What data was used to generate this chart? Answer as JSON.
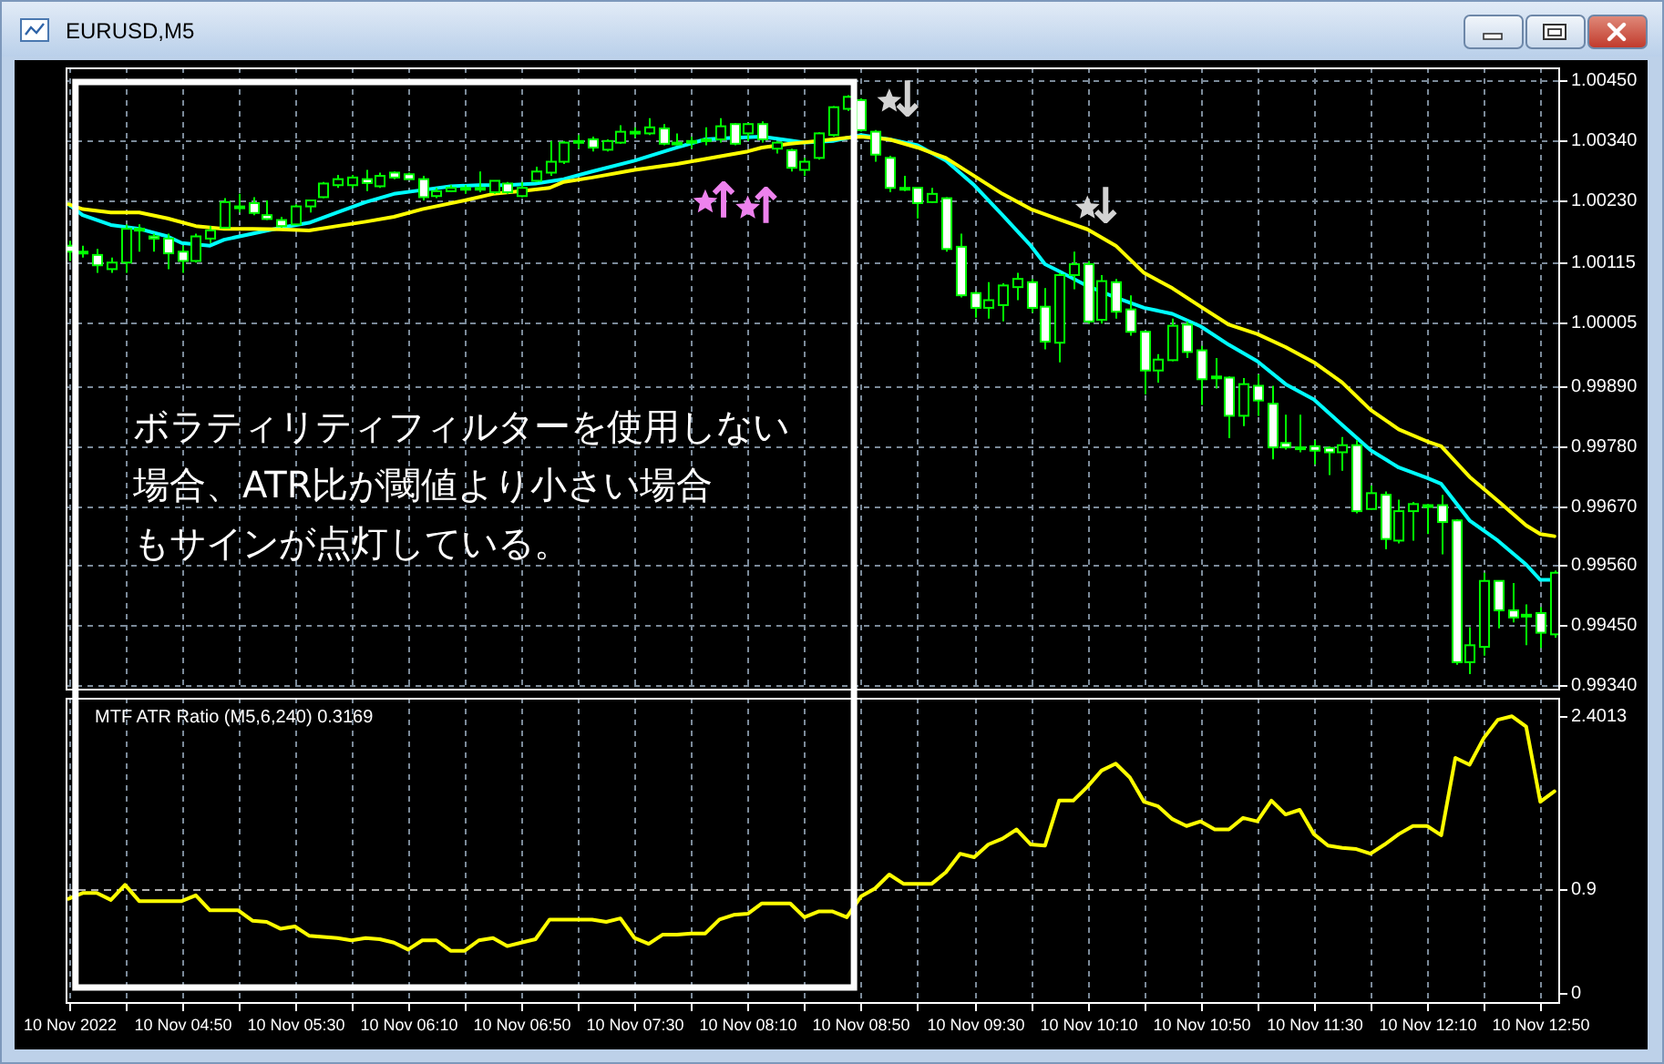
{
  "chart_data": [
    {
      "type": "candlestick",
      "title": "EURUSD,M5",
      "x": [
        "2022-11-10T04:10",
        "2022-11-10T04:15",
        "2022-11-10T04:20",
        "2022-11-10T04:25",
        "2022-11-10T04:30",
        "2022-11-10T04:35",
        "2022-11-10T04:40",
        "2022-11-10T04:45",
        "2022-11-10T04:50",
        "2022-11-10T04:55",
        "2022-11-10T05:00",
        "2022-11-10T05:05",
        "2022-11-10T05:10",
        "2022-11-10T05:15",
        "2022-11-10T05:20",
        "2022-11-10T05:25",
        "2022-11-10T05:30",
        "2022-11-10T05:35",
        "2022-11-10T05:40",
        "2022-11-10T05:45",
        "2022-11-10T05:50",
        "2022-11-10T05:55",
        "2022-11-10T06:00",
        "2022-11-10T06:05",
        "2022-11-10T06:10",
        "2022-11-10T06:15",
        "2022-11-10T06:20",
        "2022-11-10T06:25",
        "2022-11-10T06:30",
        "2022-11-10T06:35",
        "2022-11-10T06:40",
        "2022-11-10T06:45",
        "2022-11-10T06:50",
        "2022-11-10T06:55",
        "2022-11-10T07:00",
        "2022-11-10T07:05",
        "2022-11-10T07:10",
        "2022-11-10T07:15",
        "2022-11-10T07:20",
        "2022-11-10T07:25",
        "2022-11-10T07:30",
        "2022-11-10T07:35",
        "2022-11-10T07:40",
        "2022-11-10T07:45",
        "2022-11-10T07:50",
        "2022-11-10T07:55",
        "2022-11-10T08:00",
        "2022-11-10T08:05",
        "2022-11-10T08:10",
        "2022-11-10T08:15",
        "2022-11-10T08:20",
        "2022-11-10T08:25",
        "2022-11-10T08:30",
        "2022-11-10T08:35",
        "2022-11-10T08:40",
        "2022-11-10T08:45",
        "2022-11-10T08:50",
        "2022-11-10T08:55",
        "2022-11-10T09:00",
        "2022-11-10T09:05",
        "2022-11-10T09:10",
        "2022-11-10T09:15",
        "2022-11-10T09:20",
        "2022-11-10T09:25",
        "2022-11-10T09:30",
        "2022-11-10T09:35",
        "2022-11-10T09:40",
        "2022-11-10T09:45",
        "2022-11-10T09:50",
        "2022-11-10T09:55",
        "2022-11-10T10:00",
        "2022-11-10T10:05",
        "2022-11-10T10:10",
        "2022-11-10T10:15",
        "2022-11-10T10:20",
        "2022-11-10T10:25",
        "2022-11-10T10:30",
        "2022-11-10T10:35",
        "2022-11-10T10:40",
        "2022-11-10T10:45",
        "2022-11-10T10:50",
        "2022-11-10T10:55",
        "2022-11-10T11:00",
        "2022-11-10T11:05",
        "2022-11-10T11:10",
        "2022-11-10T11:15",
        "2022-11-10T11:20",
        "2022-11-10T11:25",
        "2022-11-10T11:30",
        "2022-11-10T11:35",
        "2022-11-10T11:40",
        "2022-11-10T11:45",
        "2022-11-10T11:50",
        "2022-11-10T11:55",
        "2022-11-10T12:00",
        "2022-11-10T12:05",
        "2022-11-10T12:10",
        "2022-11-10T12:15",
        "2022-11-10T12:20",
        "2022-11-10T12:25",
        "2022-11-10T12:30",
        "2022-11-10T12:35",
        "2022-11-10T12:40",
        "2022-11-10T12:45",
        "2022-11-10T12:50",
        "2022-11-10T12:55"
      ],
      "ohlc": [
        [
          1.00147,
          1.00156,
          1.00119,
          1.00136
        ],
        [
          1.00136,
          1.00147,
          1.00125,
          1.00133
        ],
        [
          1.0013,
          1.00141,
          1.00097,
          1.00111
        ],
        [
          1.00104,
          1.00125,
          1.00097,
          1.00116
        ],
        [
          1.00116,
          1.00186,
          1.00097,
          1.00178
        ],
        [
          1.00178,
          1.00186,
          1.00136,
          1.00175
        ],
        [
          1.00164,
          1.00169,
          1.00136,
          1.0016
        ],
        [
          1.0016,
          1.00169,
          1.00104,
          1.00133
        ],
        [
          1.00136,
          1.00147,
          1.00097,
          1.00119
        ],
        [
          1.00119,
          1.00169,
          1.00116,
          1.00164
        ],
        [
          1.0016,
          1.00183,
          1.00152,
          1.00175
        ],
        [
          1.0018,
          1.00234,
          1.0018,
          1.00227
        ],
        [
          1.00219,
          1.00242,
          1.00208,
          1.00217
        ],
        [
          1.00225,
          1.00236,
          1.00203,
          1.00207
        ],
        [
          1.00203,
          1.0023,
          1.00194,
          1.00196
        ],
        [
          1.00194,
          1.002,
          1.0018,
          1.00183
        ],
        [
          1.00186,
          1.00223,
          1.00186,
          1.00219
        ],
        [
          1.00219,
          1.0023,
          1.00208,
          1.0023
        ],
        [
          1.00236,
          1.00264,
          1.00234,
          1.00261
        ],
        [
          1.00258,
          1.00277,
          1.00253,
          1.00269
        ],
        [
          1.00258,
          1.00277,
          1.00253,
          1.00272
        ],
        [
          1.00269,
          1.00286,
          1.00247,
          1.00262
        ],
        [
          1.00256,
          1.00281,
          1.00253,
          1.00275
        ],
        [
          1.00281,
          1.00283,
          1.00269,
          1.00272
        ],
        [
          1.00278,
          1.00281,
          1.00269,
          1.00269
        ],
        [
          1.00269,
          1.00275,
          1.0023,
          1.00236
        ],
        [
          1.00238,
          1.00253,
          1.00234,
          1.00247
        ],
        [
          1.00247,
          1.00258,
          1.00245,
          1.00253
        ],
        [
          1.00253,
          1.00258,
          1.00242,
          1.0025
        ],
        [
          1.0025,
          1.00283,
          1.00245,
          1.00253
        ],
        [
          1.00245,
          1.00266,
          1.00242,
          1.00266
        ],
        [
          1.00261,
          1.00264,
          1.00242,
          1.00245
        ],
        [
          1.00238,
          1.00264,
          1.00236,
          1.00253
        ],
        [
          1.00266,
          1.00292,
          1.00264,
          1.00283
        ],
        [
          1.00281,
          1.00339,
          1.00275,
          1.00301
        ],
        [
          1.00301,
          1.00339,
          1.00297,
          1.00336
        ],
        [
          1.00336,
          1.0035,
          1.00325,
          1.00339
        ],
        [
          1.00342,
          1.00347,
          1.0032,
          1.00327
        ],
        [
          1.00323,
          1.00342,
          1.0032,
          1.00339
        ],
        [
          1.00336,
          1.00368,
          1.00334,
          1.00356
        ],
        [
          1.00356,
          1.00364,
          1.00345,
          1.00355
        ],
        [
          1.00353,
          1.00381,
          1.0035,
          1.00364
        ],
        [
          1.00362,
          1.0037,
          1.00331,
          1.00334
        ],
        [
          1.00334,
          1.00353,
          1.00331,
          1.00336
        ],
        [
          1.00336,
          1.00347,
          1.00325,
          1.00339
        ],
        [
          1.00339,
          1.00364,
          1.00331,
          1.00342
        ],
        [
          1.00342,
          1.00381,
          1.00336,
          1.00366
        ],
        [
          1.0037,
          1.00372,
          1.00331,
          1.00334
        ],
        [
          1.00353,
          1.00372,
          1.00339,
          1.0037
        ],
        [
          1.0037,
          1.00375,
          1.00336,
          1.00342
        ],
        [
          1.00325,
          1.00339,
          1.00316,
          1.00336
        ],
        [
          1.00322,
          1.00325,
          1.00283,
          1.0029
        ],
        [
          1.00286,
          1.00308,
          1.00275,
          1.00301
        ],
        [
          1.00308,
          1.00355,
          1.00305,
          1.00353
        ],
        [
          1.0035,
          1.00403,
          1.00347,
          1.00401
        ],
        [
          1.00398,
          1.00423,
          1.00394,
          1.0042
        ],
        [
          1.00414,
          1.00417,
          1.00356,
          1.00359
        ],
        [
          1.00356,
          1.00359,
          1.00301,
          1.00314
        ],
        [
          1.00308,
          1.00312,
          1.00245,
          1.00253
        ],
        [
          1.00253,
          1.00275,
          1.00247,
          1.0025
        ],
        [
          1.00253,
          1.00253,
          1.00197,
          1.00225
        ],
        [
          1.00227,
          1.00253,
          1.00225,
          1.00242
        ],
        [
          1.00234,
          1.00236,
          1.00136,
          1.00141
        ],
        [
          1.00145,
          1.00169,
          1.00052,
          1.00056
        ],
        [
          1.0006,
          1.00063,
          1.00015,
          1.00033
        ],
        [
          1.00033,
          1.0008,
          1.00013,
          1.00047
        ],
        [
          1.00038,
          1.00078,
          1.00008,
          1.00074
        ],
        [
          1.00071,
          1.00097,
          1.00047,
          1.00086
        ],
        [
          1.0008,
          1.00086,
          1.00024,
          1.00033
        ],
        [
          1.00035,
          1.00069,
          0.99957,
          0.99971
        ],
        [
          0.99969,
          1.00097,
          0.99933,
          1.00093
        ],
        [
          1.00093,
          1.00136,
          1.00067,
          1.00113
        ],
        [
          1.00113,
          1.00119,
          1.00004,
          1.00008
        ],
        [
          1.00011,
          1.00093,
          1.00004,
          1.00082
        ],
        [
          1.0008,
          1.00086,
          1.00013,
          1.00026
        ],
        [
          1.0003,
          1.00056,
          0.99982,
          0.99989
        ],
        [
          0.99989,
          0.99991,
          0.99874,
          0.99918
        ],
        [
          0.99918,
          0.99948,
          0.99896,
          0.99938
        ],
        [
          0.99937,
          1.00013,
          0.99935,
          1.0
        ],
        [
          1.00002,
          1.00008,
          0.99941,
          0.99952
        ],
        [
          0.99955,
          0.99963,
          0.99855,
          0.99902
        ],
        [
          0.99904,
          0.99941,
          0.99885,
          0.99907
        ],
        [
          0.99905,
          0.99907,
          0.99794,
          0.99835
        ],
        [
          0.99835,
          0.99904,
          0.99816,
          0.99893
        ],
        [
          0.9989,
          0.99911,
          0.99835,
          0.99863
        ],
        [
          0.99857,
          0.9989,
          0.99755,
          0.99777
        ],
        [
          0.99785,
          0.99837,
          0.99773,
          0.99777
        ],
        [
          0.99777,
          0.99837,
          0.99768,
          0.99776
        ],
        [
          0.99779,
          0.9979,
          0.99746,
          0.99771
        ],
        [
          0.99776,
          0.99779,
          0.99726,
          0.99768
        ],
        [
          0.99768,
          0.99796,
          0.99734,
          0.99781
        ],
        [
          0.99781,
          0.9979,
          0.99656,
          0.9966
        ],
        [
          0.99664,
          0.99707,
          0.99662,
          0.99693
        ],
        [
          0.9969,
          0.99696,
          0.9959,
          0.99609
        ],
        [
          0.99606,
          0.99681,
          0.99601,
          0.9966
        ],
        [
          0.9966,
          0.99677,
          0.99606,
          0.99673
        ],
        [
          0.9967,
          0.99673,
          0.99618,
          0.99671
        ],
        [
          0.99671,
          0.9969,
          0.99581,
          0.9964
        ],
        [
          0.99643,
          0.99645,
          0.99378,
          0.99383
        ],
        [
          0.99383,
          0.99447,
          0.99361,
          0.99414
        ],
        [
          0.99411,
          0.99547,
          0.99395,
          0.99532
        ],
        [
          0.99532,
          0.99532,
          0.99445,
          0.99478
        ],
        [
          0.99478,
          0.99528,
          0.99456,
          0.99465
        ],
        [
          0.9947,
          0.99489,
          0.99414,
          0.9947
        ],
        [
          0.99473,
          0.99484,
          0.99409,
          0.99437
        ],
        [
          0.99434,
          0.99551,
          0.99428,
          0.99547
        ]
      ],
      "color": "#00ff00",
      "series": [
        {
          "type": "line",
          "color": "#00ffff",
          "x": [
            "2022-11-10T04:10",
            "2022-11-10T04:15",
            "2022-11-10T04:25",
            "2022-11-10T04:35",
            "2022-11-10T04:45",
            "2022-11-10T04:50",
            "2022-11-10T05:00",
            "2022-11-10T05:05",
            "2022-11-10T05:15",
            "2022-11-10T05:25",
            "2022-11-10T05:35",
            "2022-11-10T05:45",
            "2022-11-10T05:55",
            "2022-11-10T06:05",
            "2022-11-10T06:15",
            "2022-11-10T06:25",
            "2022-11-10T06:35",
            "2022-11-10T06:45",
            "2022-11-10T06:55",
            "2022-11-10T07:05",
            "2022-11-10T07:15",
            "2022-11-10T07:30",
            "2022-11-10T07:45",
            "2022-11-10T07:55",
            "2022-11-10T08:05",
            "2022-11-10T08:15",
            "2022-11-10T08:25",
            "2022-11-10T08:30",
            "2022-11-10T08:40",
            "2022-11-10T08:50",
            "2022-11-10T09:00",
            "2022-11-10T09:10",
            "2022-11-10T09:20",
            "2022-11-10T09:30",
            "2022-11-10T09:40",
            "2022-11-10T09:50",
            "2022-11-10T09:55",
            "2022-11-10T10:00",
            "2022-11-10T10:10",
            "2022-11-10T10:20",
            "2022-11-10T10:30",
            "2022-11-10T10:40",
            "2022-11-10T10:50",
            "2022-11-10T11:00",
            "2022-11-10T11:10",
            "2022-11-10T11:20",
            "2022-11-10T11:30",
            "2022-11-10T11:40",
            "2022-11-10T11:50",
            "2022-11-10T12:00",
            "2022-11-10T12:10",
            "2022-11-10T12:15",
            "2022-11-10T12:25",
            "2022-11-10T12:35",
            "2022-11-10T12:45",
            "2022-11-10T12:50",
            "2022-11-10T12:55"
          ],
          "values": [
            1.00223,
            1.00203,
            1.00185,
            1.00178,
            1.00164,
            1.00152,
            1.00147,
            1.00158,
            1.00169,
            1.0018,
            1.00189,
            1.00208,
            1.00227,
            1.00242,
            1.00249,
            1.00256,
            1.00258,
            1.00258,
            1.00261,
            1.00269,
            1.00283,
            1.00303,
            1.00327,
            1.00342,
            1.00345,
            1.00347,
            1.0034,
            1.00336,
            1.00339,
            1.0035,
            1.00342,
            1.00331,
            1.00303,
            1.00258,
            1.00203,
            1.00147,
            1.00113,
            1.001,
            1.00073,
            1.00052,
            1.00033,
            1.00022,
            0.99999,
            0.99965,
            0.99935,
            0.99893,
            0.99865,
            0.99818,
            0.99772,
            0.9974,
            0.99721,
            0.9971,
            0.99643,
            0.99606,
            0.99562,
            0.99534,
            0.99534
          ]
        },
        {
          "type": "line",
          "color": "#ffff00",
          "x": [
            "2022-11-10T04:10",
            "2022-11-10T04:15",
            "2022-11-10T04:25",
            "2022-11-10T04:35",
            "2022-11-10T04:45",
            "2022-11-10T04:55",
            "2022-11-10T05:05",
            "2022-11-10T05:15",
            "2022-11-10T05:25",
            "2022-11-10T05:35",
            "2022-11-10T05:45",
            "2022-11-10T05:55",
            "2022-11-10T06:05",
            "2022-11-10T06:15",
            "2022-11-10T06:30",
            "2022-11-10T06:40",
            "2022-11-10T06:50",
            "2022-11-10T07:00",
            "2022-11-10T07:05",
            "2022-11-10T07:15",
            "2022-11-10T07:30",
            "2022-11-10T07:45",
            "2022-11-10T07:55",
            "2022-11-10T08:10",
            "2022-11-10T08:15",
            "2022-11-10T08:25",
            "2022-11-10T08:35",
            "2022-11-10T08:45",
            "2022-11-10T08:50",
            "2022-11-10T09:00",
            "2022-11-10T09:10",
            "2022-11-10T09:20",
            "2022-11-10T09:30",
            "2022-11-10T09:40",
            "2022-11-10T09:50",
            "2022-11-10T10:00",
            "2022-11-10T10:10",
            "2022-11-10T10:20",
            "2022-11-10T10:30",
            "2022-11-10T10:40",
            "2022-11-10T10:50",
            "2022-11-10T11:00",
            "2022-11-10T11:10",
            "2022-11-10T11:20",
            "2022-11-10T11:30",
            "2022-11-10T11:40",
            "2022-11-10T11:50",
            "2022-11-10T12:00",
            "2022-11-10T12:10",
            "2022-11-10T12:15",
            "2022-11-10T12:25",
            "2022-11-10T12:35",
            "2022-11-10T12:45",
            "2022-11-10T12:50",
            "2022-11-10T12:55"
          ],
          "values": [
            1.00223,
            1.00214,
            1.00208,
            1.00208,
            1.00197,
            1.00183,
            1.00178,
            1.00178,
            1.00177,
            1.00175,
            1.00183,
            1.00191,
            1.002,
            1.00214,
            1.0023,
            1.00242,
            1.00247,
            1.00253,
            1.00264,
            1.00272,
            1.00286,
            1.00297,
            1.00306,
            1.0032,
            1.00327,
            1.00334,
            1.00339,
            1.00345,
            1.00347,
            1.00342,
            1.00327,
            1.00308,
            1.00275,
            1.00242,
            1.00214,
            1.00195,
            1.00177,
            1.00147,
            1.00097,
            1.00069,
            1.00035,
            1.00002,
            0.99985,
            0.99961,
            0.99933,
            0.99896,
            0.99846,
            0.9981,
            0.99788,
            0.99779,
            0.99723,
            0.99679,
            0.99634,
            0.99618,
            0.99614
          ]
        },
        {
          "type": "scatter",
          "marker": "star",
          "color": "#ee82ee",
          "x": [
            "2022-11-10T07:55",
            "2022-11-10T08:10"
          ],
          "values": [
            1.00227,
            1.00216
          ]
        },
        {
          "type": "scatter",
          "marker": "star",
          "color": "#d3d3d3",
          "x": [
            "2022-11-10T09:00",
            "2022-11-10T10:10"
          ],
          "values": [
            1.00412,
            1.00216
          ]
        }
      ],
      "annotations": [
        "ボラティリティフィルターを使用しない場合、ATR比が閾値より小さい場合もサインが点灯している。",
        {
          "text": "↑",
          "x": "2022-11-10T07:55",
          "y": 1.00227
        },
        {
          "text": "↑",
          "x": "2022-11-10T08:10",
          "y": 1.00216
        },
        {
          "text": "↓",
          "x": "2022-11-10T09:00",
          "y": 1.00412
        },
        {
          "text": "↓",
          "x": "2022-11-10T10:10",
          "y": 1.00216
        }
      ],
      "xlim": [
        "2022-11-10T04:09",
        "2022-11-10T12:57"
      ],
      "xticks": [
        "2022-11-10T04:10",
        "2022-11-10T04:30",
        "2022-11-10T04:50",
        "2022-11-10T05:10",
        "2022-11-10T05:30",
        "2022-11-10T05:50",
        "2022-11-10T06:10",
        "2022-11-10T06:30",
        "2022-11-10T06:50",
        "2022-11-10T07:10",
        "2022-11-10T07:30",
        "2022-11-10T07:50",
        "2022-11-10T08:10",
        "2022-11-10T08:30",
        "2022-11-10T08:50",
        "2022-11-10T09:10",
        "2022-11-10T09:30",
        "2022-11-10T09:50",
        "2022-11-10T10:10",
        "2022-11-10T10:30",
        "2022-11-10T10:50",
        "2022-11-10T11:10",
        "2022-11-10T11:30",
        "2022-11-10T11:50",
        "2022-11-10T12:10",
        "2022-11-10T12:30",
        "2022-11-10T12:50"
      ],
      "ylim": [
        0.99331,
        1.00474
      ],
      "yticks": [
        {
          "value": 1.0045,
          "label": "1.00450"
        },
        {
          "value": 1.0034,
          "label": "1.00340"
        },
        {
          "value": 1.0023,
          "label": "1.00230"
        },
        1.00115,
        1.00005,
        {
          "value": 0.9989,
          "label": "0.99890"
        },
        {
          "value": 0.9978,
          "label": "0.99780"
        },
        {
          "value": 0.9967,
          "label": "0.99670"
        },
        {
          "value": 0.9956,
          "label": "0.99560"
        },
        {
          "value": 0.9945,
          "label": "0.99450"
        },
        {
          "value": 0.9934,
          "label": "0.99340"
        }
      ],
      "grid": true,
      "tick_labels": "y"
    },
    {
      "type": "line",
      "title": "MTF ATR Ratio (M5,6,240) 0.3169",
      "x": [
        "2022-11-10T04:10",
        "2022-11-10T04:15",
        "2022-11-10T04:20",
        "2022-11-10T04:25",
        "2022-11-10T04:30",
        "2022-11-10T04:35",
        "2022-11-10T04:40",
        "2022-11-10T04:45",
        "2022-11-10T04:50",
        "2022-11-10T04:55",
        "2022-11-10T05:00",
        "2022-11-10T05:05",
        "2022-11-10T05:10",
        "2022-11-10T05:15",
        "2022-11-10T05:20",
        "2022-11-10T05:25",
        "2022-11-10T05:30",
        "2022-11-10T05:35",
        "2022-11-10T05:40",
        "2022-11-10T05:45",
        "2022-11-10T05:50",
        "2022-11-10T05:55",
        "2022-11-10T06:00",
        "2022-11-10T06:05",
        "2022-11-10T06:10",
        "2022-11-10T06:15",
        "2022-11-10T06:20",
        "2022-11-10T06:25",
        "2022-11-10T06:30",
        "2022-11-10T06:35",
        "2022-11-10T06:40",
        "2022-11-10T06:45",
        "2022-11-10T06:50",
        "2022-11-10T06:55",
        "2022-11-10T07:00",
        "2022-11-10T07:05",
        "2022-11-10T07:10",
        "2022-11-10T07:15",
        "2022-11-10T07:20",
        "2022-11-10T07:25",
        "2022-11-10T07:30",
        "2022-11-10T07:35",
        "2022-11-10T07:40",
        "2022-11-10T07:45",
        "2022-11-10T07:50",
        "2022-11-10T07:55",
        "2022-11-10T08:00",
        "2022-11-10T08:05",
        "2022-11-10T08:10",
        "2022-11-10T08:15",
        "2022-11-10T08:20",
        "2022-11-10T08:25",
        "2022-11-10T08:30",
        "2022-11-10T08:35",
        "2022-11-10T08:40",
        "2022-11-10T08:45",
        "2022-11-10T08:50",
        "2022-11-10T08:55",
        "2022-11-10T09:00",
        "2022-11-10T09:05",
        "2022-11-10T09:10",
        "2022-11-10T09:15",
        "2022-11-10T09:20",
        "2022-11-10T09:25",
        "2022-11-10T09:30",
        "2022-11-10T09:35",
        "2022-11-10T09:40",
        "2022-11-10T09:45",
        "2022-11-10T09:50",
        "2022-11-10T09:55",
        "2022-11-10T10:00",
        "2022-11-10T10:05",
        "2022-11-10T10:10",
        "2022-11-10T10:15",
        "2022-11-10T10:20",
        "2022-11-10T10:25",
        "2022-11-10T10:30",
        "2022-11-10T10:35",
        "2022-11-10T10:40",
        "2022-11-10T10:45",
        "2022-11-10T10:50",
        "2022-11-10T10:55",
        "2022-11-10T11:00",
        "2022-11-10T11:05",
        "2022-11-10T11:10",
        "2022-11-10T11:15",
        "2022-11-10T11:20",
        "2022-11-10T11:25",
        "2022-11-10T11:30",
        "2022-11-10T11:35",
        "2022-11-10T11:40",
        "2022-11-10T11:45",
        "2022-11-10T11:50",
        "2022-11-10T11:55",
        "2022-11-10T12:00",
        "2022-11-10T12:05",
        "2022-11-10T12:10",
        "2022-11-10T12:15",
        "2022-11-10T12:20",
        "2022-11-10T12:25",
        "2022-11-10T12:30",
        "2022-11-10T12:35",
        "2022-11-10T12:40",
        "2022-11-10T12:45",
        "2022-11-10T12:50",
        "2022-11-10T12:55"
      ],
      "series": [
        {
          "color": "#ffff00",
          "values": [
            0.82,
            0.87,
            0.87,
            0.81,
            0.94,
            0.8,
            0.8,
            0.8,
            0.8,
            0.85,
            0.72,
            0.72,
            0.72,
            0.63,
            0.62,
            0.56,
            0.58,
            0.5,
            0.49,
            0.48,
            0.46,
            0.48,
            0.47,
            0.44,
            0.38,
            0.46,
            0.46,
            0.37,
            0.37,
            0.46,
            0.48,
            0.41,
            0.44,
            0.47,
            0.64,
            0.64,
            0.64,
            0.64,
            0.62,
            0.65,
            0.48,
            0.43,
            0.51,
            0.51,
            0.52,
            0.52,
            0.64,
            0.68,
            0.69,
            0.78,
            0.78,
            0.78,
            0.66,
            0.71,
            0.71,
            0.66,
            0.84,
            0.91,
            1.03,
            0.95,
            0.95,
            0.95,
            1.05,
            1.21,
            1.18,
            1.29,
            1.34,
            1.42,
            1.29,
            1.28,
            1.67,
            1.67,
            1.79,
            1.93,
            1.99,
            1.87,
            1.66,
            1.62,
            1.51,
            1.45,
            1.49,
            1.42,
            1.42,
            1.52,
            1.49,
            1.67,
            1.55,
            1.59,
            1.38,
            1.28,
            1.26,
            1.25,
            1.21,
            1.29,
            1.38,
            1.45,
            1.45,
            1.37,
            2.04,
            1.98,
            2.21,
            2.37,
            2.4,
            2.31,
            1.66,
            1.75
          ]
        }
      ],
      "xlim": [
        "2022-11-10T04:09",
        "2022-11-10T12:57"
      ],
      "xticks": [
        {
          "value": "2022-11-10T04:10",
          "label": "10 Nov 2022"
        },
        {
          "value": "2022-11-10T04:30",
          "label": null
        },
        {
          "value": "2022-11-10T04:50",
          "label": "10 Nov 04:50"
        },
        {
          "value": "2022-11-10T05:10",
          "label": null
        },
        {
          "value": "2022-11-10T05:30",
          "label": "10 Nov 05:30"
        },
        {
          "value": "2022-11-10T05:50",
          "label": null
        },
        {
          "value": "2022-11-10T06:10",
          "label": "10 Nov 06:10"
        },
        {
          "value": "2022-11-10T06:30",
          "label": null
        },
        {
          "value": "2022-11-10T06:50",
          "label": "10 Nov 06:50"
        },
        {
          "value": "2022-11-10T07:10",
          "label": null
        },
        {
          "value": "2022-11-10T07:30",
          "label": "10 Nov 07:30"
        },
        {
          "value": "2022-11-10T07:50",
          "label": null
        },
        {
          "value": "2022-11-10T08:10",
          "label": "10 Nov 08:10"
        },
        {
          "value": "2022-11-10T08:30",
          "label": null
        },
        {
          "value": "2022-11-10T08:50",
          "label": "10 Nov 08:50"
        },
        {
          "value": "2022-11-10T09:10",
          "label": null
        },
        {
          "value": "2022-11-10T09:30",
          "label": "10 Nov 09:30"
        },
        {
          "value": "2022-11-10T09:50",
          "label": null
        },
        {
          "value": "2022-11-10T10:10",
          "label": "10 Nov 10:10"
        },
        {
          "value": "2022-11-10T10:30",
          "label": null
        },
        {
          "value": "2022-11-10T10:50",
          "label": "10 Nov 10:50"
        },
        {
          "value": "2022-11-10T11:10",
          "label": null
        },
        {
          "value": "2022-11-10T11:30",
          "label": "10 Nov 11:30"
        },
        {
          "value": "2022-11-10T11:50",
          "label": null
        },
        {
          "value": "2022-11-10T12:10",
          "label": "10 Nov 12:10"
        },
        {
          "value": "2022-11-10T12:30",
          "label": null
        },
        {
          "value": "2022-11-10T12:50",
          "label": "10 Nov 12:50"
        }
      ],
      "ylim": [
        -0.09,
        2.56
      ],
      "yticks": [
        2.4013,
        0.9,
        0
      ],
      "ref_lines": [
        {
          "axis": "y",
          "value": 0.9,
          "color": "#b0b0b0",
          "line_style": "dashed"
        }
      ],
      "grid": "x"
    }
  ]
}
